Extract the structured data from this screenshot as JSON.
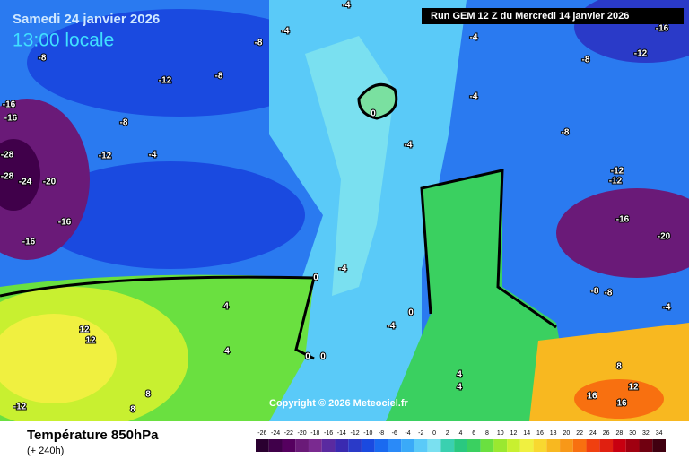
{
  "header": {
    "date": "Samedi 24 janvier 2026",
    "time": "13:00 locale",
    "run": "Run GEM 12 Z du Mercredi 14 janvier 2026"
  },
  "copyright": "Copyright © 2026 Meteociel.fr",
  "footer": {
    "title": "Température 850hPa",
    "lead": "(+ 240h)"
  },
  "legend": {
    "values": [
      -26,
      -24,
      -22,
      -20,
      -18,
      -16,
      -14,
      -12,
      -10,
      -8,
      -6,
      -4,
      -2,
      0,
      2,
      4,
      6,
      8,
      10,
      12,
      14,
      16,
      18,
      20,
      22,
      24,
      26,
      28,
      30,
      32,
      34
    ],
    "colors": [
      "#2a0030",
      "#40004a",
      "#55005f",
      "#6a1a78",
      "#7a2a90",
      "#5a2aa0",
      "#3a2ab0",
      "#2a3ac8",
      "#1a4ae0",
      "#1a6af0",
      "#2a8af8",
      "#3aaaf8",
      "#5acaf8",
      "#7ae0f0",
      "#3ad0b0",
      "#2ac880",
      "#3ad060",
      "#6ae040",
      "#9ae830",
      "#c8f030",
      "#f0f040",
      "#f8d830",
      "#f8b820",
      "#f89818",
      "#f87010",
      "#f04010",
      "#e02010",
      "#c80010",
      "#a00010",
      "#700010",
      "#400010"
    ]
  },
  "labels": [
    "-8",
    "-12",
    "-8",
    "-8",
    "-4",
    "-8",
    "-12",
    "-16",
    "-16",
    "-16",
    "-8",
    "-12",
    "-4",
    "-28",
    "-28",
    "-24",
    "-20",
    "-16",
    "-16",
    "0",
    "-4",
    "-4",
    "-8",
    "-12",
    "-12",
    "-16",
    "-20",
    "-4",
    "0",
    "4",
    "-4",
    "0",
    "0",
    "0",
    "12",
    "12",
    "8",
    "4",
    "4",
    "4",
    "8",
    "12",
    "16",
    "16",
    "-8",
    "-8",
    "-4",
    "-12",
    "8",
    "-4",
    "-4"
  ]
}
